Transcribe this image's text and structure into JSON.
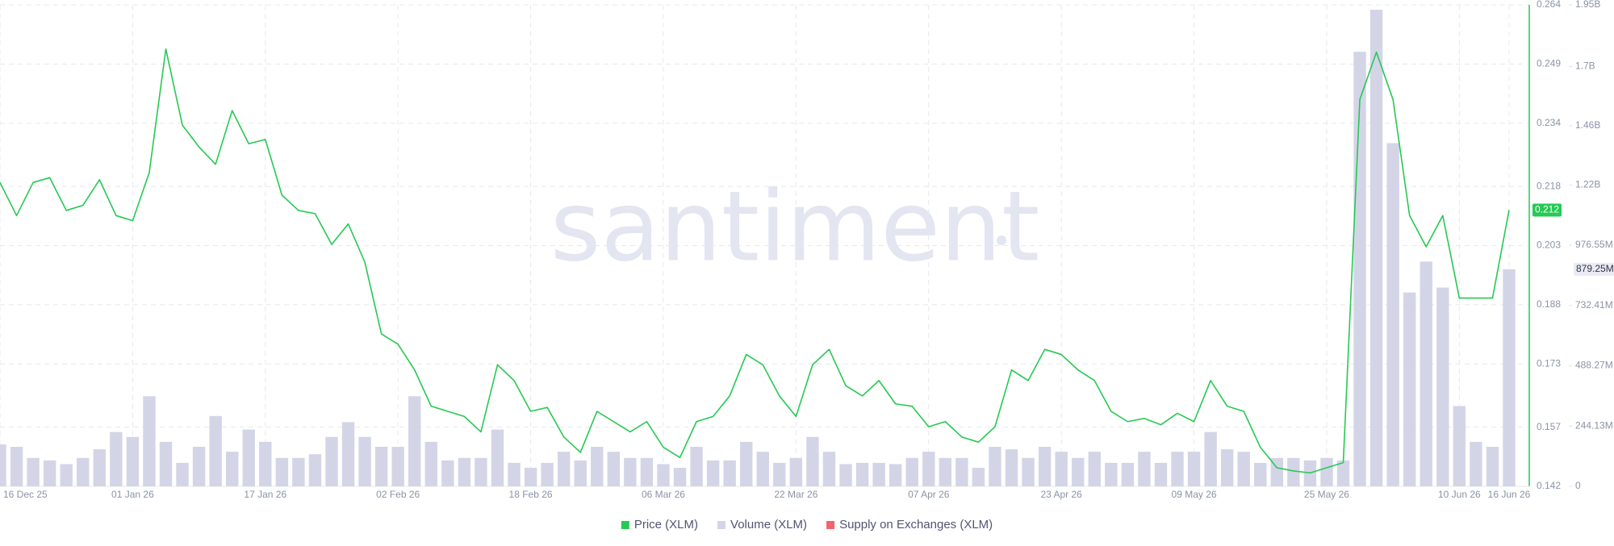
{
  "chart_data": {
    "type": "line",
    "watermark": "santiment",
    "categories": [
      "16 Dec 25",
      null,
      null,
      null,
      null,
      null,
      null,
      null,
      "01 Jan 26",
      null,
      null,
      null,
      null,
      null,
      null,
      null,
      "17 Jan 26",
      null,
      null,
      null,
      null,
      null,
      null,
      null,
      "02 Feb 26",
      null,
      null,
      null,
      null,
      null,
      null,
      null,
      "18 Feb 26",
      null,
      null,
      null,
      null,
      null,
      null,
      null,
      "06 Mar 26",
      null,
      null,
      null,
      null,
      null,
      null,
      null,
      "22 Mar 26",
      null,
      null,
      null,
      null,
      null,
      null,
      null,
      "07 Apr 26",
      null,
      null,
      null,
      null,
      null,
      null,
      null,
      "23 Apr 26",
      null,
      null,
      null,
      null,
      null,
      null,
      null,
      "09 May 26",
      null,
      null,
      null,
      null,
      null,
      null,
      null,
      "25 May 26",
      null,
      null,
      null,
      null,
      null,
      null,
      null,
      "10 Jun 26",
      null,
      null,
      "16 Jun 26"
    ],
    "series": [
      {
        "name": "Price (XLM)",
        "color": "#26c953",
        "type": "line",
        "values": [
          0.219,
          0.2106,
          0.219,
          0.2202,
          0.2119,
          0.2132,
          0.2197,
          0.2106,
          0.2093,
          0.2215,
          0.2528,
          0.2335,
          0.228,
          0.2236,
          0.2372,
          0.2288,
          0.2299,
          0.2158,
          0.2119,
          0.2111,
          0.2033,
          0.2085,
          0.1988,
          0.1806,
          0.178,
          0.1715,
          0.1623,
          0.161,
          0.1597,
          0.1558,
          0.1728,
          0.1688,
          0.161,
          0.162,
          0.1545,
          0.1506,
          0.161,
          0.1584,
          0.1558,
          0.1584,
          0.1519,
          0.1493,
          0.1584,
          0.1597,
          0.1649,
          0.1754,
          0.1728,
          0.1649,
          0.1597,
          0.1728,
          0.1767,
          0.1675,
          0.1649,
          0.1688,
          0.1629,
          0.1623,
          0.1571,
          0.1584,
          0.1545,
          0.1532,
          0.1571,
          0.1715,
          0.1688,
          0.1767,
          0.1754,
          0.1715,
          0.1688,
          0.161,
          0.1584,
          0.1592,
          0.1576,
          0.1605,
          0.1584,
          0.1688,
          0.1623,
          0.161,
          0.1519,
          0.1467,
          0.1459,
          0.1454,
          0.1467,
          0.148,
          0.24,
          0.252,
          0.24,
          0.2106,
          0.2027,
          0.2106,
          0.1897,
          0.1897,
          0.1897,
          0.212
        ]
      },
      {
        "name": "Volume (XLM)",
        "color": "#d3d5e7",
        "type": "bar",
        "axis": "y2",
        "values": [
          170000000,
          160000000,
          115000000,
          105000000,
          90000000,
          115000000,
          150000000,
          220000000,
          200000000,
          365000000,
          180000000,
          95000000,
          160000000,
          285000000,
          140000000,
          230000000,
          180000000,
          115000000,
          115000000,
          130000000,
          200000000,
          260000000,
          200000000,
          160000000,
          160000000,
          365000000,
          180000000,
          105000000,
          115000000,
          115000000,
          230000000,
          95000000,
          75000000,
          95000000,
          140000000,
          105000000,
          160000000,
          140000000,
          115000000,
          115000000,
          90000000,
          75000000,
          160000000,
          105000000,
          105000000,
          180000000,
          140000000,
          95000000,
          115000000,
          200000000,
          140000000,
          90000000,
          95000000,
          95000000,
          90000000,
          115000000,
          140000000,
          115000000,
          115000000,
          75000000,
          160000000,
          150000000,
          115000000,
          160000000,
          140000000,
          115000000,
          140000000,
          95000000,
          95000000,
          140000000,
          95000000,
          140000000,
          140000000,
          220000000,
          150000000,
          140000000,
          95000000,
          115000000,
          115000000,
          105000000,
          115000000,
          105000000,
          1760000000,
          1930000000,
          1390000000,
          785000000,
          910000000,
          805000000,
          325000000,
          180000000,
          160000000,
          879250000
        ],
        "value_labels": [
          null,
          null,
          null,
          null,
          null,
          null,
          null,
          null,
          null,
          null,
          null,
          null,
          null,
          null,
          null,
          null,
          null,
          null,
          null,
          null,
          null,
          null,
          null,
          null,
          null,
          null,
          null,
          null,
          null,
          null,
          null,
          null,
          null,
          null,
          null,
          null,
          null,
          null,
          null,
          null,
          null,
          null,
          null,
          null,
          null,
          null,
          null,
          null,
          null,
          null,
          null,
          null,
          null,
          null,
          null,
          null,
          null,
          null,
          null,
          null,
          null,
          null,
          null,
          null,
          null,
          null,
          null,
          null,
          null,
          null,
          null,
          null,
          null,
          null,
          null,
          null,
          null,
          null,
          null,
          null,
          null,
          null,
          null,
          null,
          null,
          null,
          null,
          null,
          null,
          null,
          null,
          "879.25M"
        ]
      },
      {
        "name": "Supply on Exchanges (XLM)",
        "color": "#f2636a"
      }
    ],
    "ylim": [
      0.142,
      0.264
    ],
    "yticks": [
      0.142,
      0.157,
      0.173,
      0.188,
      0.203,
      0.218,
      0.234,
      0.249,
      0.264
    ],
    "y2lim": [
      0,
      1950000000
    ],
    "y2ticks": [
      0,
      {
        "value": 244130000,
        "label": "244.13M"
      },
      {
        "value": 488270000,
        "label": "488.27M"
      },
      {
        "value": 732410000,
        "label": "732.41M"
      },
      {
        "value": 976550000,
        "label": "976.55M"
      },
      {
        "value": 1220000000,
        "label": "1.22B"
      },
      {
        "value": 1460000000,
        "label": "1.46B"
      },
      {
        "value": 1700000000,
        "label": "1.7B"
      },
      {
        "value": 1950000000,
        "label": "1.95B"
      }
    ],
    "grid": true
  }
}
